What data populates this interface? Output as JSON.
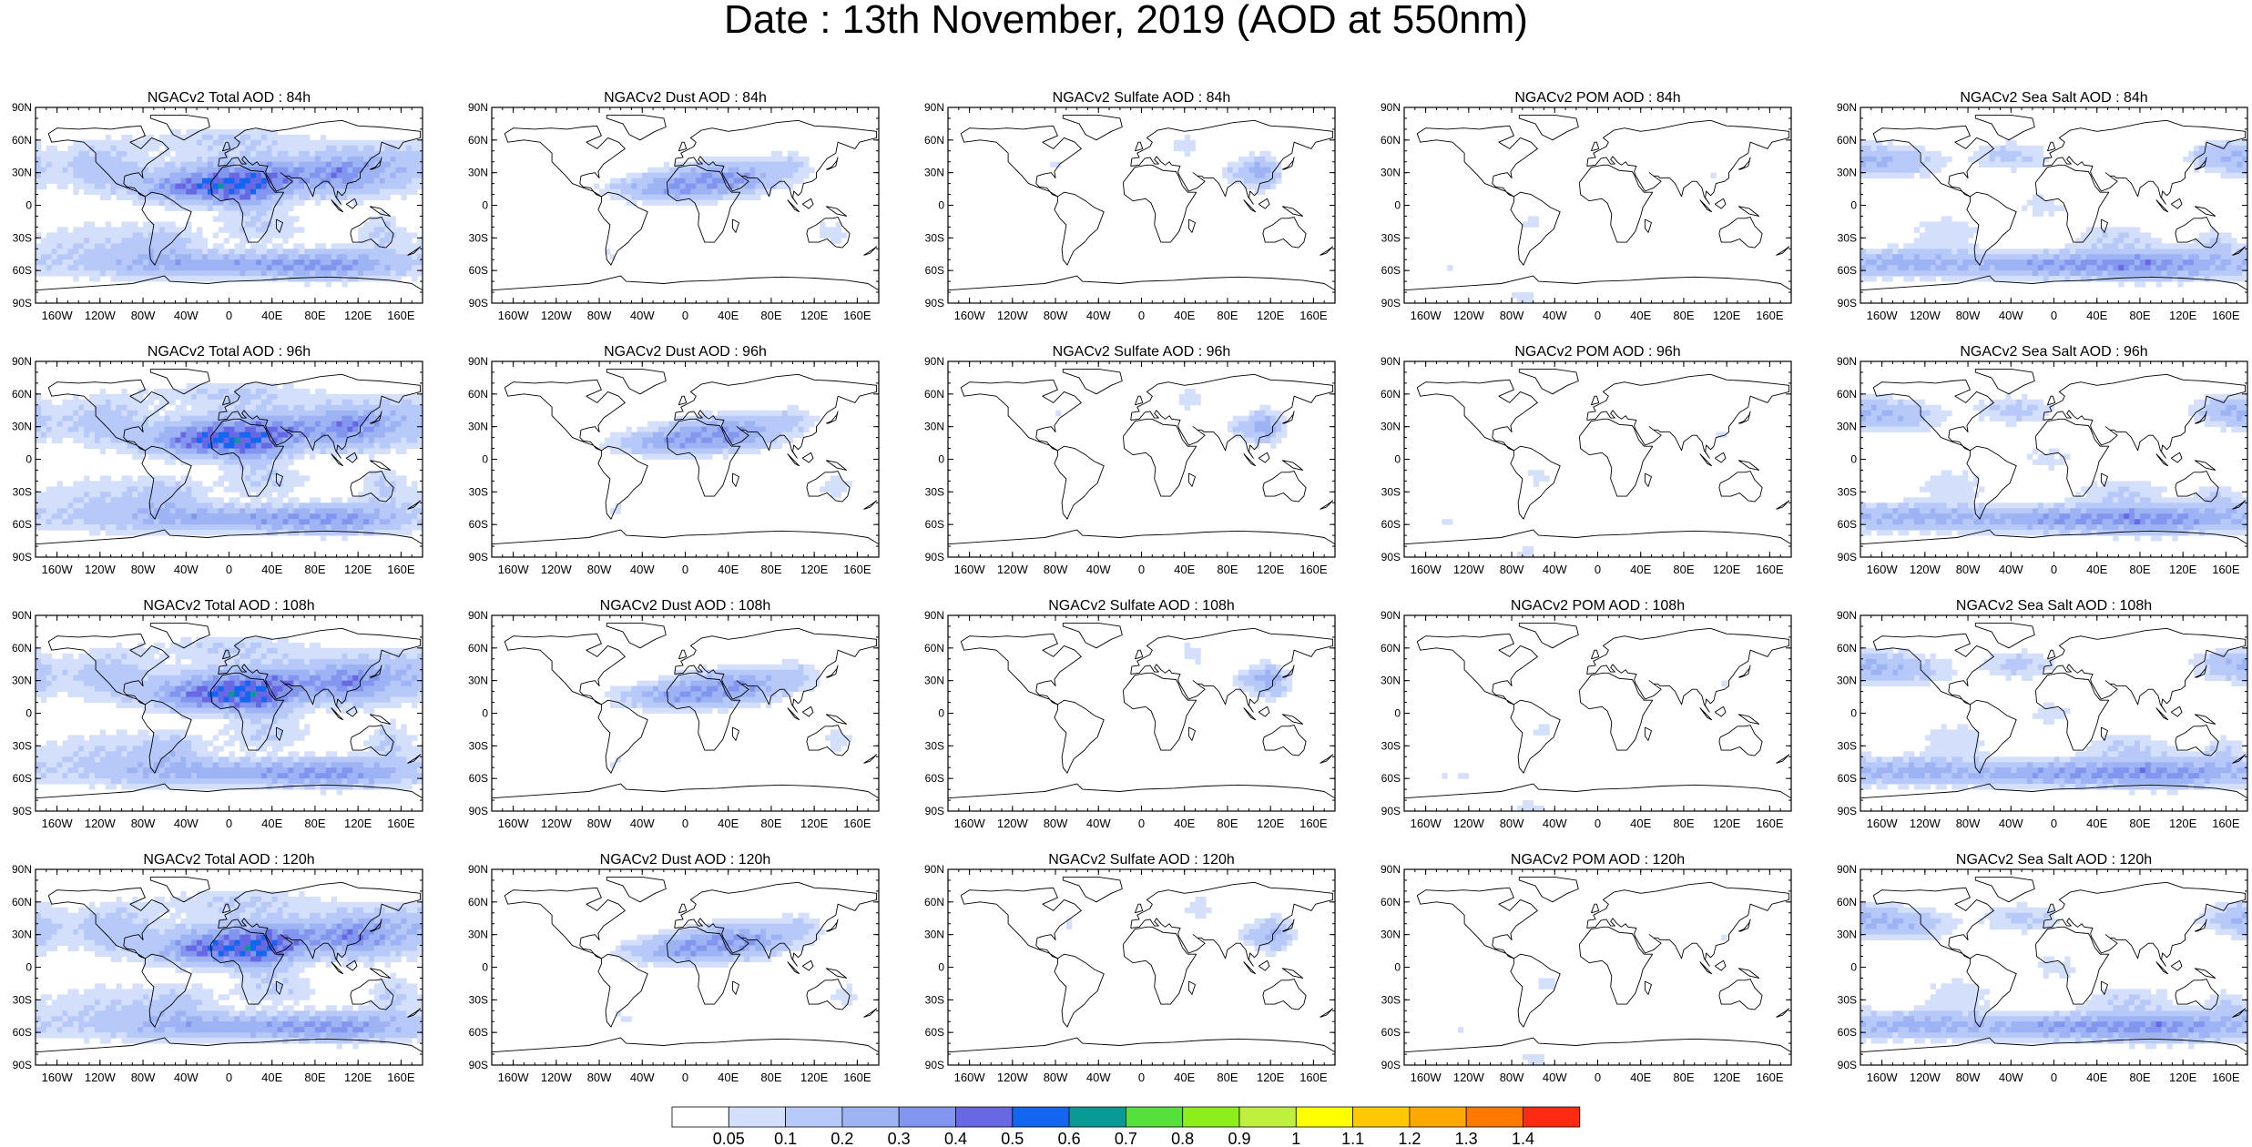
{
  "title": "Date : 13th November, 2019 (AOD at 550nm)",
  "lat_ticks": [
    "90N",
    "60N",
    "30N",
    "0",
    "30S",
    "60S",
    "90S"
  ],
  "lon_ticks": [
    "160W",
    "120W",
    "80W",
    "40W",
    "0",
    "40E",
    "80E",
    "120E",
    "160E"
  ],
  "panels": [
    [
      "NGACv2 Total AOD : 84h",
      "NGACv2 Dust AOD : 84h",
      "NGACv2 Sulfate AOD : 84h",
      "NGACv2 POM AOD : 84h",
      "NGACv2 Sea Salt AOD : 84h"
    ],
    [
      "NGACv2 Total AOD : 96h",
      "NGACv2 Dust AOD : 96h",
      "NGACv2 Sulfate AOD : 96h",
      "NGACv2 POM AOD : 96h",
      "NGACv2 Sea Salt AOD : 96h"
    ],
    [
      "NGACv2 Total AOD : 108h",
      "NGACv2 Dust AOD : 108h",
      "NGACv2 Sulfate AOD : 108h",
      "NGACv2 POM AOD : 108h",
      "NGACv2 Sea Salt AOD : 108h"
    ],
    [
      "NGACv2 Total AOD : 120h",
      "NGACv2 Dust AOD : 120h",
      "NGACv2 Sulfate AOD : 120h",
      "NGACv2 POM AOD : 120h",
      "NGACv2 Sea Salt  AOD : 120h"
    ]
  ],
  "colorbar": {
    "labels": [
      "0.05",
      "0.1",
      "0.2",
      "0.3",
      "0.4",
      "0.5",
      "0.6",
      "0.7",
      "0.8",
      "0.9",
      "1",
      "1.1",
      "1.2",
      "1.3",
      "1.4"
    ],
    "colors": [
      "#ffffff",
      "#d4e0fb",
      "#b7c9f8",
      "#9db3f4",
      "#8396ef",
      "#6868e4",
      "#1266f0",
      "#0a9a96",
      "#55e03c",
      "#8cef1c",
      "#bdef3c",
      "#ffff00",
      "#ffc800",
      "#ffa800",
      "#ff7800",
      "#ff2a12"
    ]
  },
  "colors": {
    "coastline": "#000000",
    "aerosol_light": "#d4e0fb",
    "aerosol_mid": "#9db3f4",
    "aerosol_high": "#6868e4",
    "aerosol_peak": "#55e03c"
  }
}
